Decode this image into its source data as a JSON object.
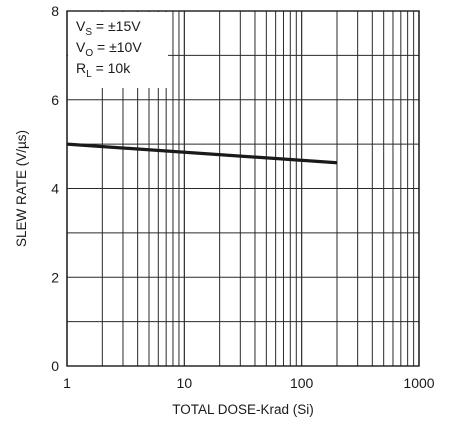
{
  "chart_data": {
    "type": "line",
    "xlabel": "TOTAL DOSE-Krad (Si)",
    "ylabel": "SLEW RATE (V/µs)",
    "x_scale": "log",
    "xlim": [
      1,
      1000
    ],
    "ylim": [
      0,
      8
    ],
    "x_ticks": [
      {
        "value": 1,
        "label": "1"
      },
      {
        "value": 10,
        "label": "10"
      },
      {
        "value": 100,
        "label": "100"
      },
      {
        "value": 1000,
        "label": "1000"
      }
    ],
    "y_ticks": [
      {
        "value": 0,
        "label": "0"
      },
      {
        "value": 2,
        "label": "2"
      },
      {
        "value": 4,
        "label": "4"
      },
      {
        "value": 6,
        "label": "6"
      },
      {
        "value": 8,
        "label": "8"
      }
    ],
    "grid": true,
    "series": [
      {
        "x": [
          1,
          200
        ],
        "y": [
          5.0,
          4.58
        ],
        "color": "#1a1a1a"
      }
    ],
    "annotations": [
      {
        "main": "V",
        "sub": "S",
        "rest": " = ±15V"
      },
      {
        "main": "V",
        "sub": "O",
        "rest": " = ±10V"
      },
      {
        "main": "R",
        "sub": "L",
        "rest": " = 10k"
      }
    ],
    "annotation_position": "top-left"
  }
}
